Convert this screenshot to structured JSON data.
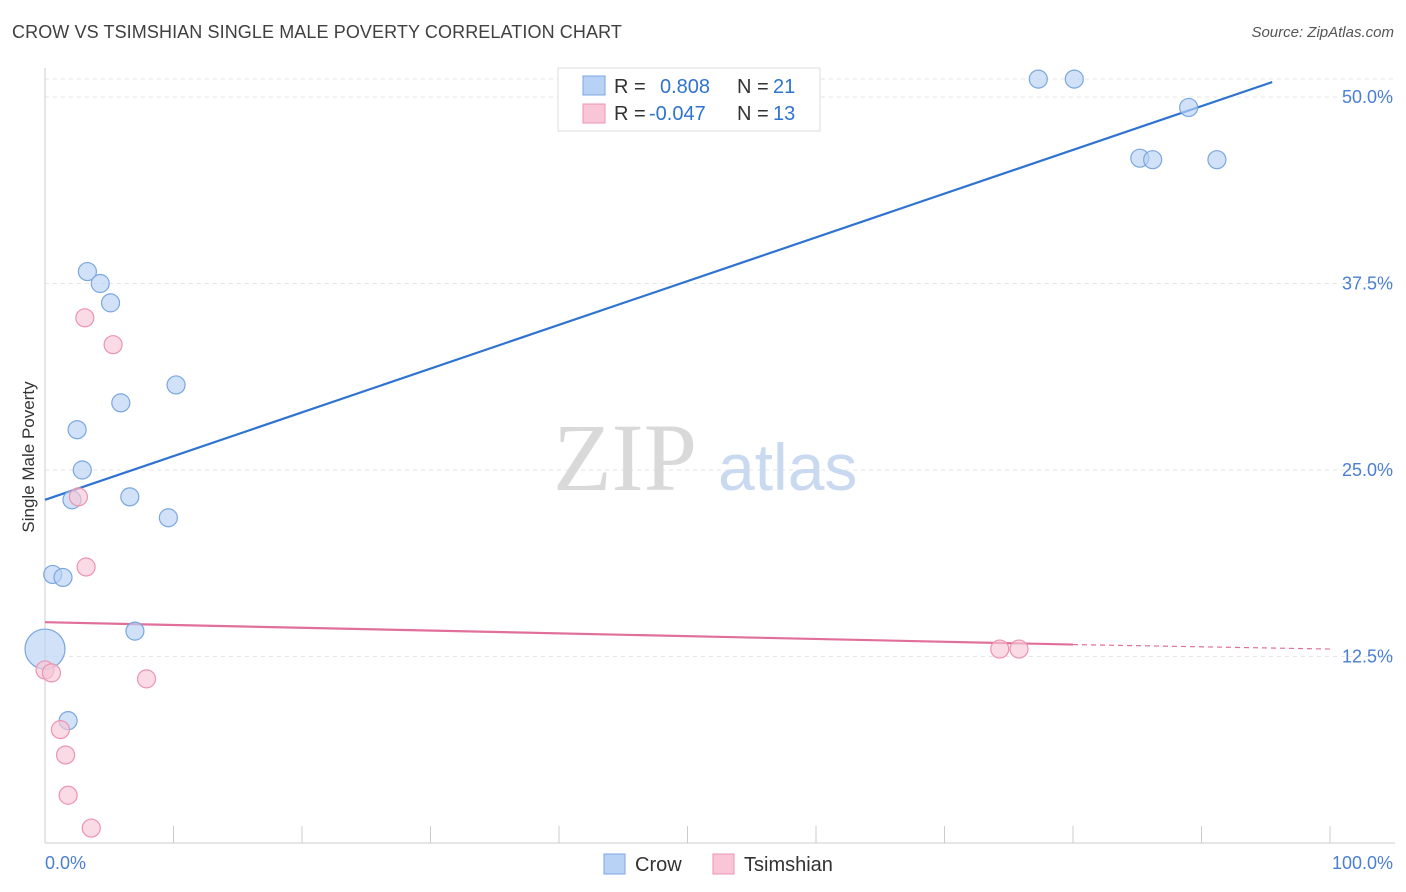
{
  "header": {
    "title": "CROW VS TSIMSHIAN SINGLE MALE POVERTY CORRELATION CHART",
    "source": "Source: ZipAtlas.com"
  },
  "watermark": {
    "zip": "ZIP",
    "atlas": "atlas"
  },
  "colors": {
    "crow_fill": "#b8d2f5",
    "crow_stroke": "#7aa6e0",
    "crow_line": "#2f73d0",
    "tsim_fill": "#f8c6d6",
    "tsim_stroke": "#ec94b0",
    "tsim_line": "#e0709a",
    "grid": "#e6e6e6",
    "tick_text": "#4a7fd4"
  },
  "chart_data": {
    "type": "scatter",
    "title": "CROW VS TSIMSHIAN SINGLE MALE POVERTY CORRELATION CHART",
    "xlabel": "",
    "ylabel": "Single Male Poverty",
    "xlim": [
      0,
      100
    ],
    "ylim": [
      0,
      50
    ],
    "x_tick_labels": [
      "0.0%",
      "100.0%"
    ],
    "y_ticks": [
      12.5,
      25.0,
      37.5,
      50.0
    ],
    "y_tick_labels": [
      "12.5%",
      "25.0%",
      "37.5%",
      "50.0%"
    ],
    "grid": true,
    "legend_position": "top-center",
    "stats": [
      {
        "r_label": "R = ",
        "r_value": "0.808",
        "n_label": "N = ",
        "n_value": "21"
      },
      {
        "r_label": "R = ",
        "r_value": "-0.047",
        "n_label": "N = ",
        "n_value": "13"
      }
    ],
    "series": [
      {
        "name": "Crow",
        "points": [
          [
            0.0,
            13.0
          ],
          [
            0.6,
            18.0
          ],
          [
            1.4,
            17.8
          ],
          [
            1.8,
            8.2
          ],
          [
            2.1,
            23.0
          ],
          [
            2.5,
            27.7
          ],
          [
            2.9,
            25.0
          ],
          [
            3.3,
            38.3
          ],
          [
            4.3,
            37.5
          ],
          [
            5.1,
            36.2
          ],
          [
            5.9,
            29.5
          ],
          [
            6.6,
            23.2
          ],
          [
            7.0,
            14.2
          ],
          [
            9.6,
            21.8
          ],
          [
            10.2,
            30.7
          ],
          [
            77.3,
            51.2
          ],
          [
            80.1,
            51.2
          ],
          [
            85.2,
            45.9
          ],
          [
            86.2,
            45.8
          ],
          [
            89.0,
            49.3
          ],
          [
            91.2,
            45.8
          ]
        ],
        "point_sizes": [
          20,
          9,
          9,
          9,
          9,
          9,
          9,
          9,
          9,
          9,
          9,
          9,
          9,
          9,
          9,
          9,
          9,
          9,
          9,
          9,
          9
        ],
        "trend": {
          "x": [
            0,
            95.5
          ],
          "y": [
            23.0,
            51.0
          ]
        }
      },
      {
        "name": "Tsimshian",
        "points": [
          [
            0.0,
            11.6
          ],
          [
            0.5,
            11.4
          ],
          [
            1.2,
            7.6
          ],
          [
            1.6,
            5.9
          ],
          [
            1.8,
            3.2
          ],
          [
            2.6,
            23.2
          ],
          [
            3.1,
            35.2
          ],
          [
            3.2,
            18.5
          ],
          [
            3.6,
            1.0
          ],
          [
            5.3,
            33.4
          ],
          [
            7.9,
            11.0
          ],
          [
            74.3,
            13.0
          ],
          [
            75.8,
            13.0
          ]
        ],
        "point_sizes": [
          9,
          9,
          9,
          9,
          9,
          9,
          9,
          9,
          9,
          9,
          9,
          9,
          9
        ],
        "trend": {
          "x": [
            0,
            80.0
          ],
          "y": [
            14.8,
            13.3
          ]
        },
        "trend_dashed": {
          "x": [
            80.0,
            100
          ],
          "y": [
            13.3,
            13.0
          ]
        }
      }
    ]
  }
}
